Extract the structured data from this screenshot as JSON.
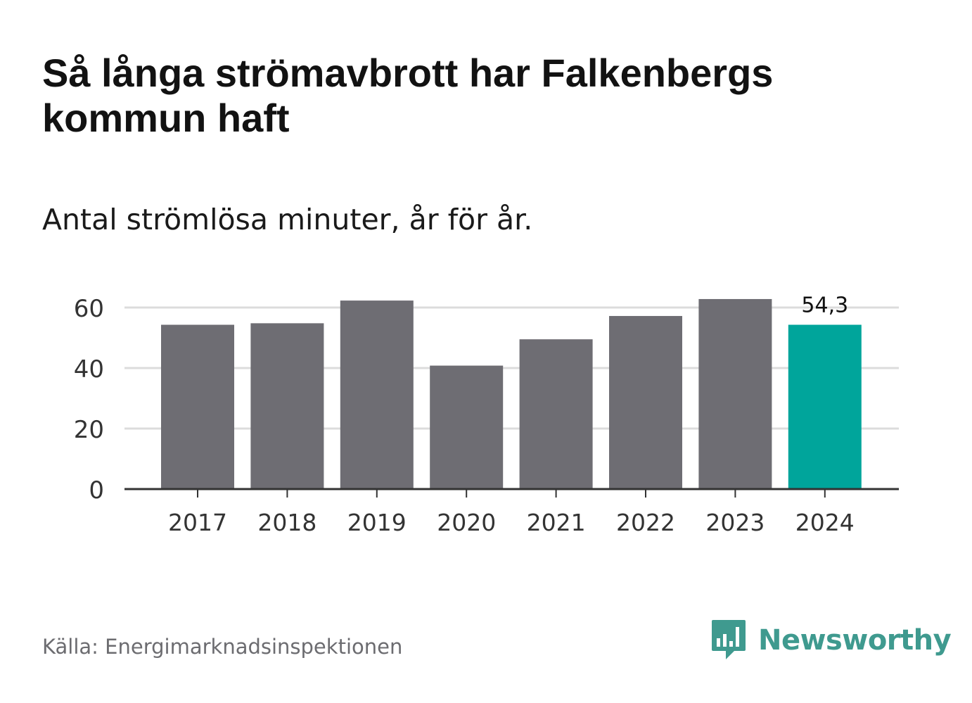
{
  "title": "Så långa strömavbrott har Falkenbergs kommun haft",
  "subtitle": "Antal strömlösa minuter, år för år.",
  "source": "Källa: Energimarknadsinspektionen",
  "brand": {
    "name": "Newsworthy",
    "logo_icon": "bar-chart-speech-bubble-icon"
  },
  "colors": {
    "bar_default": "#6e6d73",
    "bar_highlight": "#00a59b",
    "gridline": "#dcdcdc",
    "axis": "#333333",
    "brand": "#3f9a8f"
  },
  "chart_data": {
    "type": "bar",
    "title": "Så långa strömavbrott har Falkenbergs kommun haft",
    "subtitle": "Antal strömlösa minuter, år för år.",
    "xlabel": "",
    "ylabel": "",
    "categories": [
      "2017",
      "2018",
      "2019",
      "2020",
      "2021",
      "2022",
      "2023",
      "2024"
    ],
    "values": [
      54.3,
      54.8,
      62.3,
      40.8,
      49.5,
      57.2,
      62.8,
      54.3
    ],
    "highlight_index": 7,
    "data_labels": [
      {
        "index": 7,
        "text": "54,3"
      }
    ],
    "yticks": [
      0,
      20,
      40,
      60
    ],
    "ytick_labels": [
      "0",
      "20",
      "40",
      "60"
    ],
    "ylim": [
      0,
      60
    ],
    "grid": true,
    "legend": "none"
  }
}
